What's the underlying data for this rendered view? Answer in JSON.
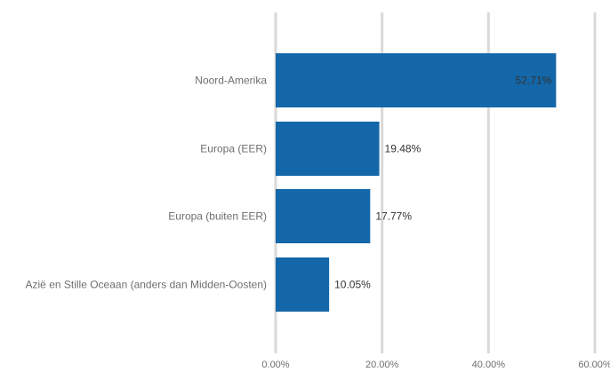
{
  "chart_data": {
    "type": "bar",
    "orientation": "horizontal",
    "categories": [
      "Noord-Amerika",
      "Europa (EER)",
      "Europa (buiten EER)",
      "Azië en Stille Oceaan (anders dan Midden-Oosten)"
    ],
    "values": [
      52.71,
      19.48,
      17.77,
      10.05
    ],
    "data_labels": [
      "52.71%",
      "19.48%",
      "17.77%",
      "10.05%"
    ],
    "xlim": [
      0,
      60
    ],
    "x_ticks": [
      0,
      20,
      40,
      60
    ],
    "x_tick_labels": [
      "0.00%",
      "20.00%",
      "40.00%",
      "60.00%"
    ],
    "grid": true,
    "bar_color": "#1467a8",
    "grid_color": "#d9d9d9",
    "label_color": "#6e6e6e",
    "value_label_color": "#333333"
  }
}
